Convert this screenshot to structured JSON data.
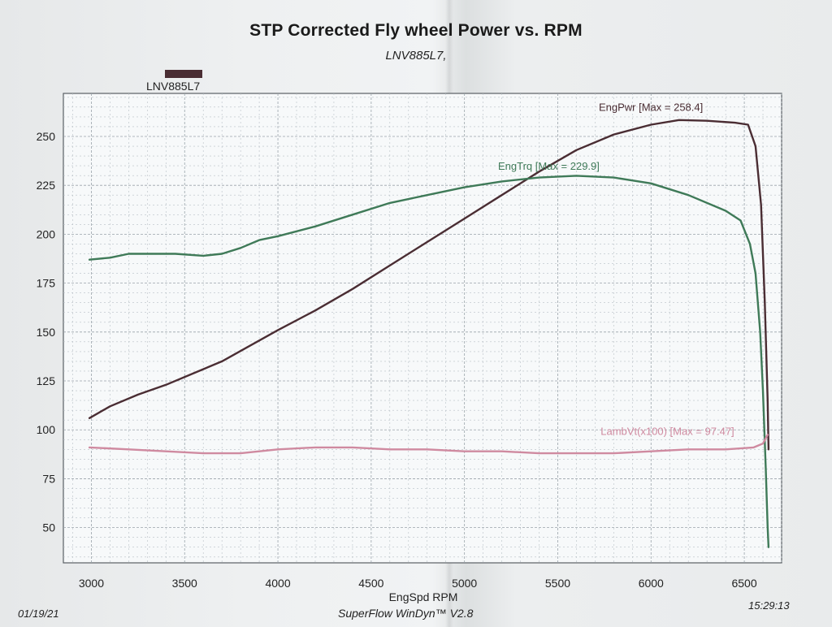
{
  "header": {
    "title": "STP Corrected Fly wheel Power vs. RPM",
    "subtitle": "LNV885L7,",
    "legend_label": "LNV885L7"
  },
  "footer": {
    "date": "01/19/21",
    "software": "SuperFlow WinDyn™ V2.8",
    "time": "15:29:13"
  },
  "colors": {
    "power": "#4a2d33",
    "torque": "#3f7a58",
    "lambda": "#cf8aa0",
    "grid": "#b8c0c6",
    "plot_bg": "#f7f9fa"
  },
  "chart_data": {
    "type": "line",
    "title": "STP Corrected Fly wheel Power vs. RPM",
    "xlabel": "EngSpd  RPM",
    "ylabel": "",
    "xlim": [
      2850,
      6700
    ],
    "ylim": [
      32,
      272
    ],
    "x_ticks": [
      3000,
      3500,
      4000,
      4500,
      5000,
      5500,
      6000,
      6500
    ],
    "y_ticks": [
      50,
      75,
      100,
      125,
      150,
      175,
      200,
      225,
      250
    ],
    "grid": true,
    "series": [
      {
        "name": "EngPwr",
        "label": "EngPwr [Max = 258.4]",
        "color": "power",
        "points": [
          [
            2990,
            106
          ],
          [
            3100,
            112
          ],
          [
            3250,
            118
          ],
          [
            3400,
            123
          ],
          [
            3550,
            129
          ],
          [
            3700,
            135
          ],
          [
            3850,
            143
          ],
          [
            4000,
            151
          ],
          [
            4200,
            161
          ],
          [
            4400,
            172
          ],
          [
            4600,
            184
          ],
          [
            4800,
            196
          ],
          [
            5000,
            208
          ],
          [
            5200,
            220
          ],
          [
            5400,
            232
          ],
          [
            5600,
            243
          ],
          [
            5800,
            251
          ],
          [
            6000,
            256
          ],
          [
            6150,
            258.4
          ],
          [
            6300,
            258
          ],
          [
            6450,
            257
          ],
          [
            6520,
            256
          ],
          [
            6560,
            245
          ],
          [
            6590,
            215
          ],
          [
            6610,
            165
          ],
          [
            6625,
            115
          ],
          [
            6630,
            90
          ]
        ]
      },
      {
        "name": "EngTrq",
        "label": "EngTrq [Max = 229.9]",
        "color": "torque",
        "points": [
          [
            2990,
            187
          ],
          [
            3100,
            188
          ],
          [
            3200,
            190
          ],
          [
            3300,
            190
          ],
          [
            3450,
            190
          ],
          [
            3600,
            189
          ],
          [
            3700,
            190
          ],
          [
            3800,
            193
          ],
          [
            3900,
            197
          ],
          [
            4000,
            199
          ],
          [
            4200,
            204
          ],
          [
            4400,
            210
          ],
          [
            4600,
            216
          ],
          [
            4800,
            220
          ],
          [
            5000,
            224
          ],
          [
            5200,
            227
          ],
          [
            5400,
            229
          ],
          [
            5600,
            229.9
          ],
          [
            5800,
            229
          ],
          [
            6000,
            226
          ],
          [
            6200,
            220
          ],
          [
            6400,
            212
          ],
          [
            6480,
            207
          ],
          [
            6530,
            195
          ],
          [
            6560,
            180
          ],
          [
            6585,
            150
          ],
          [
            6600,
            120
          ],
          [
            6615,
            80
          ],
          [
            6625,
            50
          ],
          [
            6630,
            40
          ]
        ]
      },
      {
        "name": "LambVt(x100)",
        "label": "LambVt(x100) [Max = 97.47]",
        "color": "lambda",
        "points": [
          [
            2990,
            91
          ],
          [
            3200,
            90
          ],
          [
            3400,
            89
          ],
          [
            3600,
            88
          ],
          [
            3800,
            88
          ],
          [
            4000,
            90
          ],
          [
            4200,
            91
          ],
          [
            4400,
            91
          ],
          [
            4600,
            90
          ],
          [
            4800,
            90
          ],
          [
            5000,
            89
          ],
          [
            5200,
            89
          ],
          [
            5400,
            88
          ],
          [
            5600,
            88
          ],
          [
            5800,
            88
          ],
          [
            6000,
            89
          ],
          [
            6200,
            90
          ],
          [
            6400,
            90
          ],
          [
            6550,
            91
          ],
          [
            6600,
            93
          ],
          [
            6625,
            97.47
          ]
        ]
      }
    ]
  }
}
